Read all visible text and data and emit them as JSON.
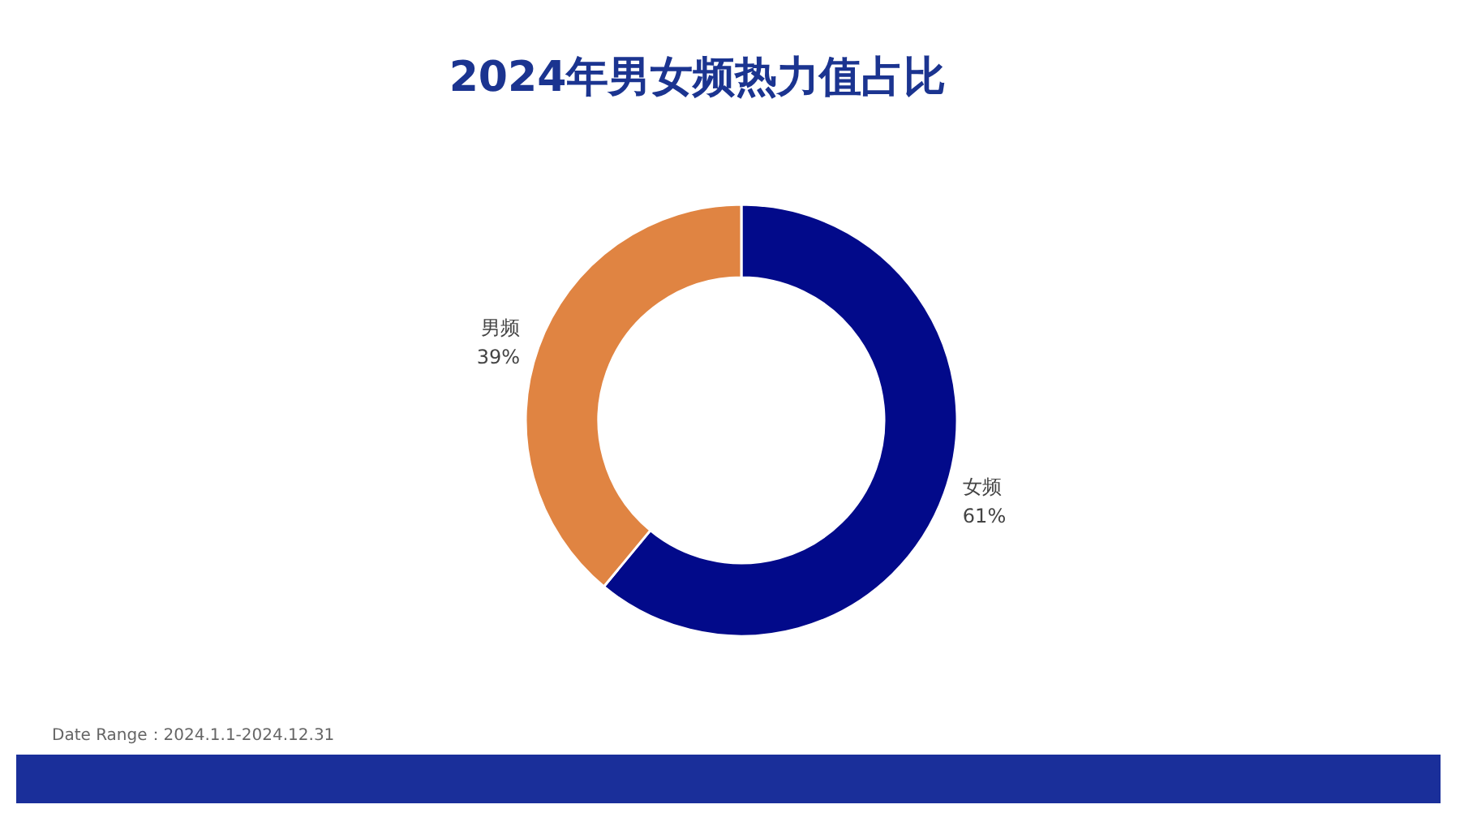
{
  "chart_data": {
    "type": "donut",
    "title": "2024年男女频热力值占比",
    "categories": [
      "女频",
      "男频"
    ],
    "values": [
      61,
      39
    ],
    "colors": [
      "#020a8a",
      "#e08442"
    ],
    "value_labels": [
      "61%",
      "39%"
    ],
    "annotations": [
      "Date Range：2024.1.1-2024.12.31"
    ]
  }
}
